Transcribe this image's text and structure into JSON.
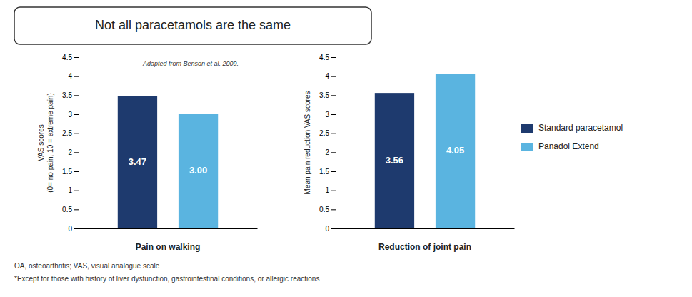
{
  "title": "Not all paracetamols are the same",
  "annotations": [
    "OA, osteoarthritis; VAS, visual analogue scale",
    "*Except for those with history of liver dysfunction,  gastrointestinal conditions, or allergic reactions"
  ],
  "chart_data": [
    {
      "type": "bar",
      "xlabel": "Pain on walking",
      "ylabel": "VAS scores\n(0= no pain, 10 = extreme pain)",
      "categories": [
        null
      ],
      "series": [
        {
          "name": "Standard paracetamol",
          "color": "#1e3a6e",
          "values": [
            3.47
          ],
          "value_labels": [
            "3.47"
          ]
        },
        {
          "name": "Panadol Extend",
          "color": "#5ab4e0",
          "values": [
            3.0
          ],
          "value_labels": [
            "3.00"
          ]
        }
      ],
      "ylim": [
        0,
        4.5
      ],
      "yticks": [
        0,
        0.5,
        1,
        1.5,
        2,
        2.5,
        3,
        3.5,
        4,
        4.5
      ],
      "data_labels": true,
      "grid": false,
      "legend": "right",
      "annotations": [
        "Adapted from Benson et al. 2009."
      ]
    },
    {
      "type": "bar",
      "xlabel": "Reduction of joint pain",
      "ylabel": "Mean pain reduction VAS scores",
      "categories": [
        null
      ],
      "series": [
        {
          "color": "#1e3a6e",
          "values": [
            3.56
          ],
          "value_labels": [
            "3.56"
          ]
        },
        {
          "color": "#5ab4e0",
          "values": [
            4.05
          ],
          "value_labels": [
            "4.05"
          ]
        }
      ],
      "ylim": [
        0,
        4.5
      ],
      "yticks": [
        0,
        0.5,
        1,
        1.5,
        2,
        2.5,
        3,
        3.5,
        4,
        4.5
      ],
      "data_labels": true,
      "grid": false
    }
  ]
}
